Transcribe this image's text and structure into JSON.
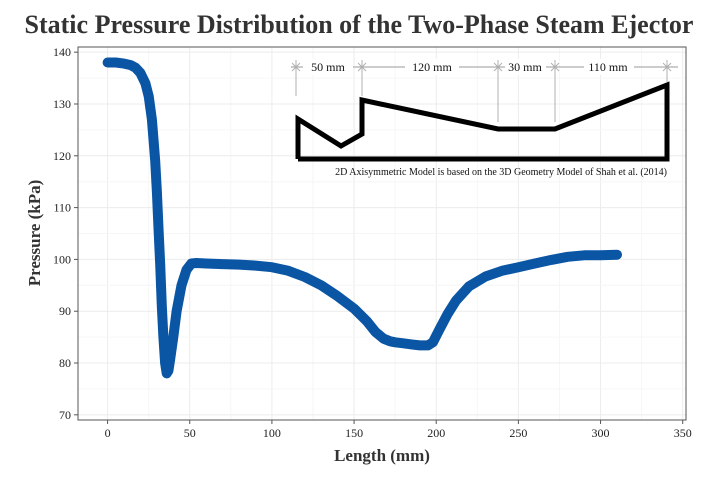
{
  "chart_data": {
    "type": "line",
    "title": "Static Pressure Distribution of the Two-Phase Steam Ejector",
    "xlabel": "Length (mm)",
    "ylabel": "Pressure (kPa)",
    "xlim": [
      -18,
      352
    ],
    "ylim": [
      69,
      141
    ],
    "xticks": [
      0,
      50,
      100,
      150,
      200,
      250,
      300,
      350
    ],
    "yticks": [
      70,
      80,
      90,
      100,
      110,
      120,
      130,
      140
    ],
    "grid": true,
    "series": [
      {
        "color": "#0a56a5",
        "x": [
          0,
          5,
          10,
          14,
          17,
          20,
          23,
          25,
          27,
          29,
          30,
          31,
          32,
          33,
          34,
          35,
          36,
          37,
          38,
          40,
          42,
          45,
          48,
          51,
          54,
          60,
          70,
          80,
          90,
          100,
          110,
          120,
          130,
          140,
          150,
          158,
          163,
          168,
          172,
          175,
          180,
          185,
          190,
          195,
          198,
          202,
          207,
          212,
          220,
          230,
          240,
          250,
          260,
          270,
          280,
          290,
          300,
          310
        ],
        "y": [
          138,
          138,
          137.8,
          137.5,
          137,
          136,
          134,
          131.5,
          127,
          119,
          113,
          106,
          99,
          91,
          85,
          80,
          78,
          78.5,
          80.5,
          85,
          90,
          95,
          98,
          99.2,
          99.3,
          99.2,
          99.1,
          99,
          98.8,
          98.5,
          97.8,
          96.6,
          95,
          92.9,
          90.5,
          88,
          86,
          84.7,
          84.2,
          84,
          83.8,
          83.6,
          83.4,
          83.4,
          84,
          86.5,
          89.5,
          92,
          94.8,
          96.7,
          97.8,
          98.5,
          99.2,
          99.9,
          100.5,
          100.8,
          100.8,
          100.9
        ]
      }
    ],
    "inset": {
      "segments": [
        "50 mm",
        "120 mm",
        "30 mm",
        "110 mm"
      ],
      "note": "2D Axisymmetric Model is based on the 3D Geometry Model of Shah et al. (2014)"
    }
  }
}
